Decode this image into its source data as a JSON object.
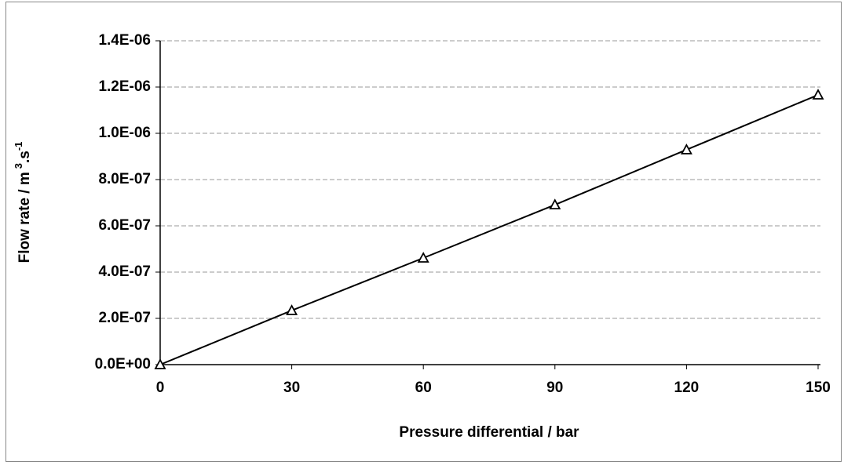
{
  "chart_data": {
    "type": "line",
    "xlabel": "Pressure differential / bar",
    "ylabel": [
      "Flow rate / m",
      "3",
      ".s",
      "-1"
    ],
    "x": [
      0,
      30,
      60,
      90,
      120,
      150
    ],
    "series": [
      {
        "color": "#000000",
        "marker": "triangle",
        "values": [
          0,
          2.34e-07,
          4.61e-07,
          6.91e-07,
          9.29e-07,
          1.166e-06
        ]
      }
    ],
    "xlim": [
      0,
      150
    ],
    "xticks": [
      0,
      30,
      60,
      90,
      120,
      150
    ],
    "ylim": [
      0,
      1.4e-06
    ],
    "yticks": [
      {
        "value": 0,
        "label": "0.0E+00"
      },
      {
        "value": 2e-07,
        "label": "2.0E-07"
      },
      {
        "value": 4e-07,
        "label": "4.0E-07"
      },
      {
        "value": 6e-07,
        "label": "6.0E-07"
      },
      {
        "value": 8e-07,
        "label": "8.0E-07"
      },
      {
        "value": 1e-06,
        "label": "1.0E-06"
      },
      {
        "value": 1.2e-06,
        "label": "1.2E-06"
      },
      {
        "value": 1.4e-06,
        "label": "1.4E-06"
      }
    ],
    "grid": true
  }
}
